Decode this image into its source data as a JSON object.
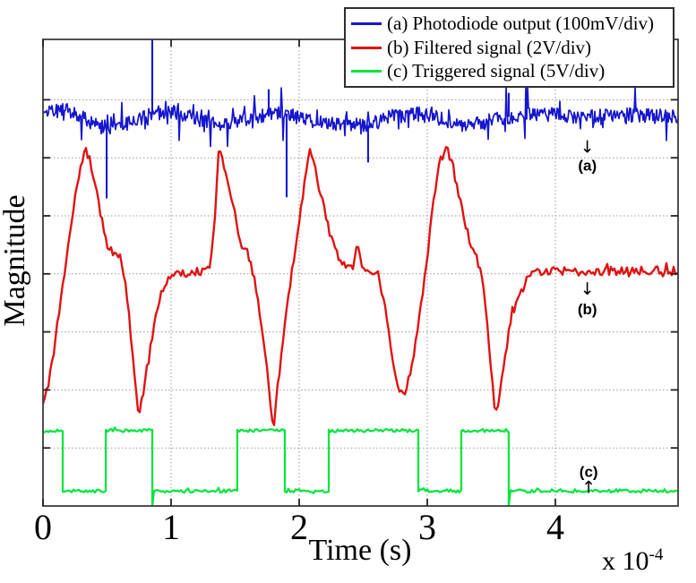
{
  "figure": {
    "background": "#ffffff",
    "plot_border_color": "#3c3c3c",
    "grid_color": "#999999",
    "tick_color": "#222222",
    "text_color": "#000000"
  },
  "axes": {
    "x_label": "Time (s)",
    "y_label": "Magnitude",
    "x_multiplier_base": "x 10",
    "x_multiplier_exponent": "-4",
    "x_tick_labels": [
      "0",
      "1",
      "2",
      "3",
      "4"
    ],
    "x_range_units_of_1e-4_s": [
      0,
      4.96
    ],
    "y_axis_numeric_labels": "none",
    "grid_style": "dotted"
  },
  "legend": {
    "items": [
      {
        "id": "a",
        "label": "(a) Photodiode output (100mV/div)",
        "color": "#1616cf"
      },
      {
        "id": "b",
        "label": "(b) Filtered signal (2V/div)",
        "color": "#e01212"
      },
      {
        "id": "c",
        "label": "(c) Triggered signal (5V/div)",
        "color": "#00e53c"
      }
    ]
  },
  "annotations": [
    {
      "label": "(a)",
      "arrow": "↓",
      "t": 4.25,
      "arrow_div": 6.09,
      "label_div": 5.78
    },
    {
      "label": "(b)",
      "arrow": "↓",
      "t": 4.25,
      "arrow_div": 3.64,
      "label_div": 3.3
    },
    {
      "label": "(c)",
      "arrow": "↑",
      "t": 4.26,
      "arrow_div": 0.22,
      "label_div": 0.5
    }
  ],
  "chart_data": {
    "type": "line",
    "title": "",
    "xlabel": "Time (s)",
    "ylabel": "Magnitude",
    "x_unit": "seconds, axis scaled by 1e-4",
    "x_ticks": [
      0,
      1,
      2,
      3,
      4
    ],
    "xlim": [
      0,
      4.96
    ],
    "y_divisions": 8,
    "grid": "dotted both axes",
    "legend_position": "top-right inside",
    "note": "y values are in oscilloscope divisions measured from the bottom axis (1 div per dotted gridline)",
    "series": [
      {
        "name": "(a) Photodiode output (100mV/div)",
        "color": "#1616cf",
        "style": "noisy-baseline",
        "width": 1.7,
        "baseline_keypoints": [
          [
            0,
            6.8
          ],
          [
            0.2,
            6.82
          ],
          [
            0.33,
            6.68
          ],
          [
            0.45,
            6.52
          ],
          [
            0.6,
            6.55
          ],
          [
            0.72,
            6.65
          ],
          [
            0.85,
            6.76
          ],
          [
            1.0,
            6.8
          ],
          [
            1.15,
            6.72
          ],
          [
            1.3,
            6.58
          ],
          [
            1.45,
            6.6
          ],
          [
            1.6,
            6.68
          ],
          [
            1.75,
            6.74
          ],
          [
            1.9,
            6.76
          ],
          [
            2.05,
            6.66
          ],
          [
            2.2,
            6.58
          ],
          [
            2.4,
            6.62
          ],
          [
            2.55,
            6.56
          ],
          [
            2.7,
            6.7
          ],
          [
            2.9,
            6.76
          ],
          [
            3.1,
            6.68
          ],
          [
            3.28,
            6.56
          ],
          [
            3.45,
            6.62
          ],
          [
            3.62,
            6.7
          ],
          [
            3.85,
            6.76
          ],
          [
            4.2,
            6.7
          ],
          [
            4.55,
            6.74
          ],
          [
            5.0,
            6.72
          ]
        ],
        "spikes": [
          [
            0.497,
            5.3
          ],
          [
            0.853,
            8.06
          ],
          [
            1.762,
            7.18
          ],
          [
            1.902,
            5.32
          ],
          [
            2.538,
            5.92
          ],
          [
            3.636,
            7.12
          ]
        ]
      },
      {
        "name": "(b) Filtered signal (2V/div)",
        "color": "#e01212",
        "style": "noisy-curve",
        "width": 2.4,
        "keypoints": [
          [
            0.0,
            1.7
          ],
          [
            0.06,
            2.3
          ],
          [
            0.14,
            3.55
          ],
          [
            0.22,
            4.9
          ],
          [
            0.29,
            5.85
          ],
          [
            0.33,
            6.15
          ],
          [
            0.36,
            6.0
          ],
          [
            0.4,
            5.55
          ],
          [
            0.44,
            5.15
          ],
          [
            0.49,
            4.6
          ],
          [
            0.54,
            4.35
          ],
          [
            0.6,
            4.28
          ],
          [
            0.64,
            3.95
          ],
          [
            0.68,
            3.1
          ],
          [
            0.72,
            2.15
          ],
          [
            0.745,
            1.6
          ],
          [
            0.77,
            1.8
          ],
          [
            0.8,
            2.2
          ],
          [
            0.85,
            2.9
          ],
          [
            0.9,
            3.45
          ],
          [
            0.97,
            3.9
          ],
          [
            1.05,
            4.0
          ],
          [
            1.18,
            4.03
          ],
          [
            1.3,
            4.06
          ],
          [
            1.335,
            4.7
          ],
          [
            1.375,
            6.25
          ],
          [
            1.41,
            5.9
          ],
          [
            1.46,
            5.35
          ],
          [
            1.5,
            5.0
          ],
          [
            1.545,
            4.45
          ],
          [
            1.6,
            4.33
          ],
          [
            1.65,
            3.95
          ],
          [
            1.7,
            3.2
          ],
          [
            1.745,
            2.45
          ],
          [
            1.78,
            1.7
          ],
          [
            1.8,
            1.35
          ],
          [
            1.83,
            2.0
          ],
          [
            1.875,
            2.85
          ],
          [
            1.93,
            3.85
          ],
          [
            2.0,
            4.85
          ],
          [
            2.05,
            5.75
          ],
          [
            2.08,
            6.15
          ],
          [
            2.11,
            5.95
          ],
          [
            2.16,
            5.45
          ],
          [
            2.2,
            5.1
          ],
          [
            2.25,
            4.6
          ],
          [
            2.3,
            4.33
          ],
          [
            2.36,
            4.15
          ],
          [
            2.42,
            4.1
          ],
          [
            2.455,
            4.55
          ],
          [
            2.49,
            4.15
          ],
          [
            2.56,
            4.03
          ],
          [
            2.62,
            3.95
          ],
          [
            2.67,
            3.45
          ],
          [
            2.72,
            2.6
          ],
          [
            2.77,
            2.05
          ],
          [
            2.82,
            1.95
          ],
          [
            2.87,
            2.3
          ],
          [
            2.93,
            3.1
          ],
          [
            3.0,
            4.3
          ],
          [
            3.06,
            5.45
          ],
          [
            3.11,
            6.05
          ],
          [
            3.145,
            6.22
          ],
          [
            3.18,
            6.0
          ],
          [
            3.23,
            5.5
          ],
          [
            3.28,
            5.05
          ],
          [
            3.33,
            4.55
          ],
          [
            3.38,
            4.3
          ],
          [
            3.42,
            4.05
          ],
          [
            3.46,
            3.3
          ],
          [
            3.5,
            2.3
          ],
          [
            3.53,
            1.58
          ],
          [
            3.56,
            1.8
          ],
          [
            3.6,
            2.45
          ],
          [
            3.65,
            3.2
          ],
          [
            3.72,
            3.7
          ],
          [
            3.8,
            3.98
          ],
          [
            3.9,
            4.05
          ],
          [
            4.2,
            4.04
          ],
          [
            4.6,
            4.06
          ],
          [
            5.0,
            4.05
          ]
        ]
      },
      {
        "name": "(c) Triggered signal (5V/div)",
        "color": "#00e53c",
        "style": "square-wave",
        "width": 2.2,
        "high_div": 1.3,
        "low_div": 0.26,
        "transitions": [
          {
            "t": 0.0,
            "level": "high"
          },
          {
            "t": 0.154,
            "level": "low"
          },
          {
            "t": 0.49,
            "level": "high"
          },
          {
            "t": 0.853,
            "level": "low",
            "undershoot": true
          },
          {
            "t": 1.517,
            "level": "high"
          },
          {
            "t": 1.888,
            "level": "low"
          },
          {
            "t": 2.231,
            "level": "high"
          },
          {
            "t": 2.93,
            "level": "low"
          },
          {
            "t": 3.266,
            "level": "high"
          },
          {
            "t": 3.636,
            "level": "low",
            "undershoot": true
          }
        ],
        "t_end": 4.958
      }
    ]
  }
}
